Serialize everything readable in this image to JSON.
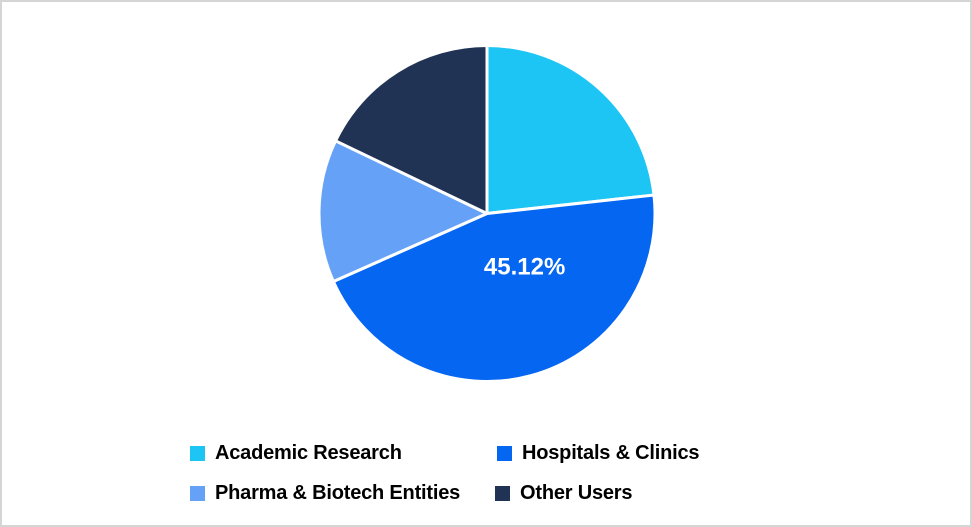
{
  "frame": {
    "background_color": "#ffffff",
    "border_color": "#d5d5d5"
  },
  "chart_data": {
    "type": "pie",
    "title": "",
    "start_angle_deg": 0,
    "direction": "clockwise",
    "legend_position": "bottom",
    "slice_border_color": "#ffffff",
    "data_label_color": "#ffffff",
    "legend_text_color": "#000000",
    "slices": [
      {
        "label": "Academic Research",
        "value": 23.25,
        "color": "#1dc5f5",
        "data_label": ""
      },
      {
        "label": "Hospitals & Clinics",
        "value": 45.12,
        "color": "#0566f2",
        "data_label": "45.12%"
      },
      {
        "label": "Pharma & Biotech Entities",
        "value": 13.75,
        "color": "#66a1f8",
        "data_label": ""
      },
      {
        "label": "Other Users",
        "value": 17.88,
        "color": "#203355",
        "data_label": ""
      }
    ]
  }
}
